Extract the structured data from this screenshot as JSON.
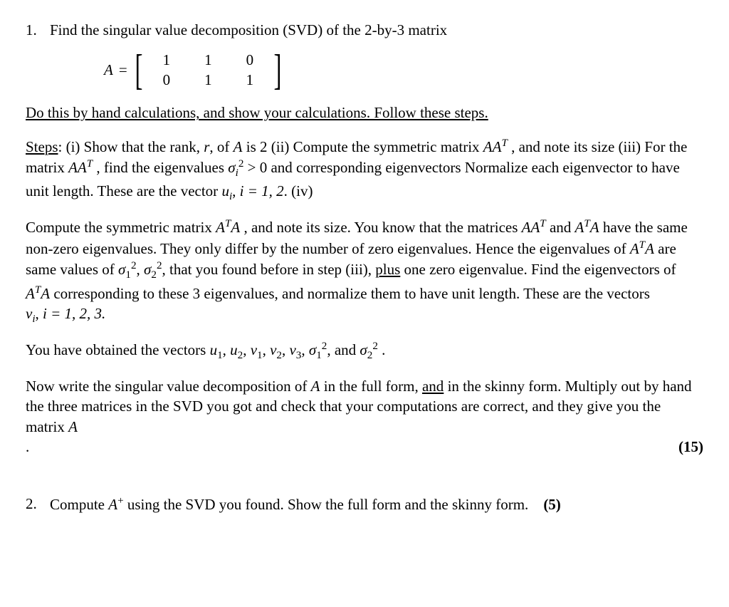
{
  "q1": {
    "number": "1.",
    "prompt": "Find the singular value decomposition (SVD) of the 2-by-3 matrix",
    "matrix_label": "A",
    "equals": "=",
    "matrix": {
      "r1c1": "1",
      "r1c2": "1",
      "r1c3": "0",
      "r2c1": "0",
      "r2c2": "1",
      "r2c3": "1"
    },
    "instruction": "Do this by hand calculations, and show your calculations. Follow these steps.",
    "steps_label": "Steps",
    "steps_i_a": ": (i) Show that the rank, ",
    "r": "r",
    "steps_i_b": ", of ",
    "A": "A",
    "steps_i_c": " is 2   (ii) Compute the symmetric matrix ",
    "AAT": "AA",
    "T": "T",
    "steps_i_d": " , and note its size (iii) For the matrix ",
    "steps_i_e": " , find the eigenvalues ",
    "sigma": "σ",
    "i": "i",
    "two": "2",
    "gt0": " > 0",
    "steps_i_f": " and corresponding eigenvectors Normalize each eigenvector to have unit length. These are the vector ",
    "u": "u",
    "comma_i12": ",  ",
    "i_eq_12": "i = 1, 2",
    "period_iv": ".   (iv)",
    "iv_a": "Compute the symmetric matrix ",
    "ATA": "A",
    "iv_b": " , and note its size. You know that the matrices ",
    "iv_c": " and ",
    "iv_d": " have the same non-zero eigenvalues. They only differ by the number of zero eigenvalues. Hence the eigenvalues of ",
    "iv_e": " are same values of ",
    "s1": "1",
    "s2": "2",
    "iv_f": " that you found before in step (iii), ",
    "plus": "plus",
    "iv_g": " one zero eigenvalue. Find the eigenvectors of ",
    "iv_h": " corresponding to these 3 eigenvalues, and normalize them to have unit length. These are the vectors ",
    "v": "v",
    "i_eq_123": "i = 1, 2, 3.",
    "obtained_a": "You have obtained the vectors ",
    "comma": ", ",
    "three": "3",
    "obtained_b": " and ",
    "obtained_c": " .",
    "final_a": "Now write the singular value decomposition of ",
    "final_b": " in the full form, ",
    "and": "and",
    "final_c": " in the skinny form. Multiply out by hand the three matrices in the SVD you got and check that your computations are correct, and they give you the matrix ",
    "final_d": ".",
    "points": "(15)"
  },
  "q2": {
    "number": "2.",
    "text_a": "Compute ",
    "A": "A",
    "plus": "+",
    "text_b": " using the SVD you found. Show the full form and the skinny form.",
    "points": "(5)"
  }
}
